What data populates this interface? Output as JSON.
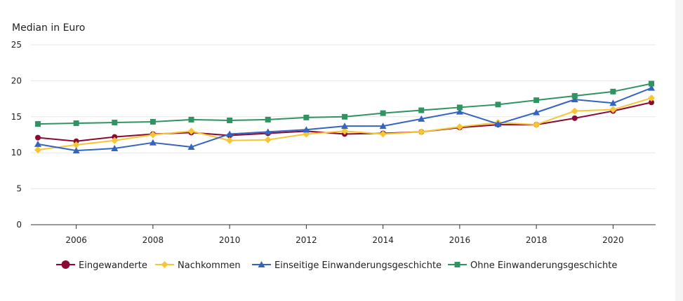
{
  "chart_data": {
    "type": "line",
    "ylabel": "Median in Euro",
    "xlabel": "",
    "title": "",
    "ylim": [
      0,
      25
    ],
    "xlim": [
      2005,
      2021
    ],
    "yticks": [
      0,
      5,
      10,
      15,
      20,
      25
    ],
    "xticks": [
      2006,
      2008,
      2010,
      2012,
      2014,
      2016,
      2018,
      2020
    ],
    "grid": "horizontal",
    "legend_position": "bottom",
    "x": [
      2005,
      2006,
      2007,
      2008,
      2009,
      2010,
      2011,
      2012,
      2013,
      2014,
      2015,
      2016,
      2017,
      2018,
      2019,
      2020,
      2021
    ],
    "series": [
      {
        "name": "Eingewanderte",
        "color": "#8b0a32",
        "marker": "circle",
        "values": [
          12.1,
          11.6,
          12.2,
          12.6,
          12.8,
          12.4,
          12.7,
          13.0,
          12.6,
          12.7,
          12.9,
          13.5,
          13.9,
          13.9,
          14.8,
          15.8,
          17.0
        ]
      },
      {
        "name": "Nachkommen",
        "color": "#f7c631",
        "marker": "diamond",
        "values": [
          10.4,
          11.1,
          11.7,
          12.5,
          13.0,
          11.7,
          11.8,
          12.6,
          13.0,
          12.6,
          12.9,
          13.6,
          14.2,
          13.9,
          15.8,
          16.0,
          17.6
        ]
      },
      {
        "name": "Einseitige Einwanderungsgeschichte",
        "color": "#3364c0",
        "marker": "triangle",
        "values": [
          11.2,
          10.3,
          10.6,
          11.4,
          10.8,
          12.6,
          12.9,
          13.2,
          13.7,
          13.7,
          14.7,
          15.7,
          14.0,
          15.6,
          17.4,
          16.9,
          19.0
        ]
      },
      {
        "name": "Ohne Einwanderungsgeschichte",
        "color": "#2f9461",
        "marker": "square",
        "values": [
          14.0,
          14.1,
          14.2,
          14.3,
          14.6,
          14.5,
          14.6,
          14.9,
          15.0,
          15.5,
          15.9,
          16.3,
          16.7,
          17.3,
          17.9,
          18.5,
          19.6
        ]
      }
    ]
  }
}
